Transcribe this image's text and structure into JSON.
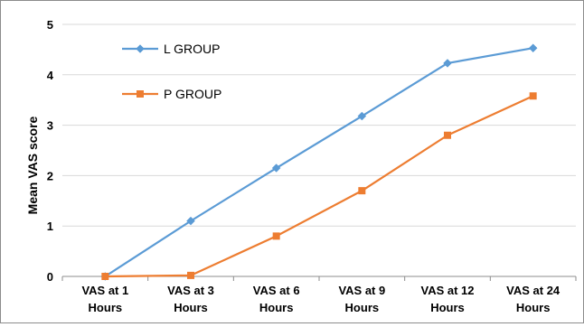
{
  "chart_data": {
    "type": "line",
    "title": "",
    "xlabel": "",
    "ylabel": "Mean VAS score",
    "categories": [
      [
        "VAS at 1",
        "Hours"
      ],
      [
        "VAS at 3",
        "Hours"
      ],
      [
        "VAS at 6",
        "Hours"
      ],
      [
        "VAS at 9",
        "Hours"
      ],
      [
        "VAS at 12",
        "Hours"
      ],
      [
        "VAS at 24",
        "Hours"
      ]
    ],
    "ylim": [
      0,
      5
    ],
    "yticks": [
      "0",
      "1",
      "2",
      "3",
      "4",
      "5"
    ],
    "grid": true,
    "legend_position": "top-left",
    "series": [
      {
        "name": "L GROUP",
        "color": "#5b9bd5",
        "marker": "diamond",
        "values": [
          0,
          1.1,
          2.15,
          3.18,
          4.23,
          4.53
        ]
      },
      {
        "name": "P GROUP",
        "color": "#ed7d31",
        "marker": "square",
        "values": [
          0,
          0.02,
          0.8,
          1.7,
          2.8,
          3.58
        ]
      }
    ]
  }
}
